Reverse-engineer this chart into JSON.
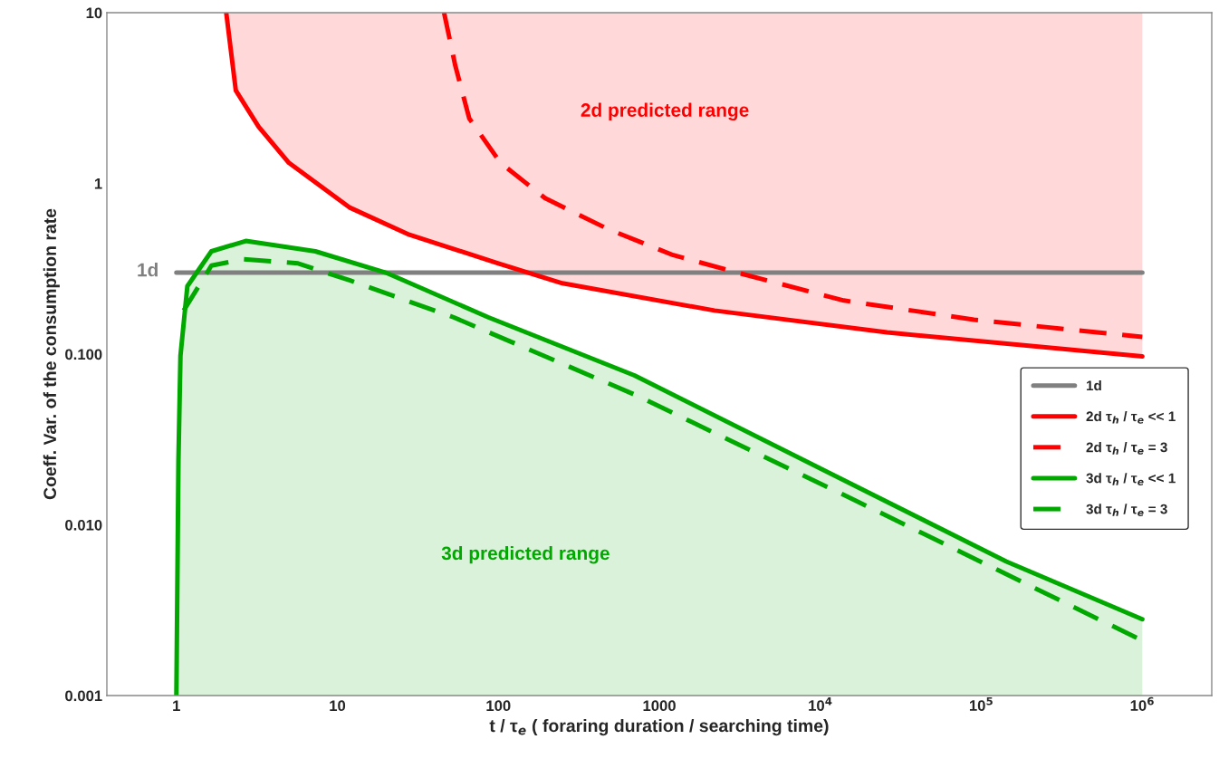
{
  "chart_data": {
    "type": "line",
    "xlabel": "t / τ$_{e}$ ( foraring duration / searching time)",
    "ylabel": "Coeff. Var. of the consumption rate",
    "log": "xy",
    "grid": false,
    "legend": "right",
    "xlim": [
      0.37,
      2700000
    ],
    "ylim": [
      0.001,
      10
    ],
    "xticks": [
      1,
      10,
      100,
      1000,
      {
        "value": 10000,
        "label": "10$^{4}$"
      },
      {
        "value": 100000,
        "label": "10$^{5}$"
      },
      {
        "value": 1000000,
        "label": "10$^{6}$"
      }
    ],
    "yticks": [
      0.001,
      {
        "value": 0.01,
        "label": "0.010"
      },
      {
        "value": 0.1,
        "label": "0.100"
      },
      1,
      10
    ],
    "annotations": [
      "1d",
      "2d predicted range",
      "3d predicted range"
    ],
    "series": [
      {
        "name": "1d",
        "color": "#808080",
        "line_style": "solid",
        "x": [
          1,
          1000000
        ],
        "values": [
          0.3,
          0.3
        ]
      },
      {
        "name": "2d τ$_{h}$ / τ$_{e}$ << 1",
        "color": "#ff0000",
        "line_style": "solid",
        "x": [
          2.04,
          2.34,
          3.24,
          5,
          12,
          28,
          100,
          250,
          2200,
          26000,
          1000000
        ],
        "values": [
          10,
          3.5,
          2.15,
          1.32,
          0.72,
          0.5,
          0.34,
          0.26,
          0.18,
          0.134,
          0.097
        ],
        "lower": [
          10,
          3.5,
          2.15,
          1.32,
          0.72,
          0.5,
          0.34,
          0.26,
          0.18,
          0.134,
          0.097
        ],
        "upper": [
          10,
          10,
          10,
          10,
          10,
          10,
          10,
          10,
          10,
          10,
          10
        ]
      },
      {
        "name": "2d τ$_{h}$ / τ$_{e}$ = 3",
        "color": "#ff0000",
        "line_style": "dashed",
        "x": [
          46,
          54,
          66,
          103,
          195,
          480,
          1220,
          3060,
          14000,
          90000,
          1000000
        ],
        "values": [
          10,
          4.9,
          2.4,
          1.32,
          0.82,
          0.54,
          0.38,
          0.3,
          0.206,
          0.159,
          0.126
        ]
      },
      {
        "name": "3d τ$_{h}$ / τ$_{e}$ << 1",
        "color": "#00a800",
        "line_style": "solid",
        "x": [
          1,
          1.03,
          1.06,
          1.17,
          1.65,
          2.7,
          7.3,
          20,
          87,
          700,
          10000,
          143000,
          1000000
        ],
        "values": [
          0.001,
          0.024,
          0.098,
          0.25,
          0.4,
          0.46,
          0.4,
          0.3,
          0.164,
          0.075,
          0.0214,
          0.0061,
          0.0028
        ],
        "lower": [
          0.001,
          0.001,
          0.001,
          0.001,
          0.001,
          0.001,
          0.001,
          0.001,
          0.001,
          0.001,
          0.001,
          0.001,
          0.001
        ],
        "upper": [
          0.001,
          0.024,
          0.098,
          0.25,
          0.4,
          0.46,
          0.4,
          0.3,
          0.164,
          0.075,
          0.0214,
          0.0061,
          0.0028
        ]
      },
      {
        "name": "3d τ$_{h}$ / τ$_{e}$ = 3",
        "color": "#00a800",
        "line_style": "dashed",
        "x": [
          1.11,
          1.65,
          2.6,
          5.7,
          12,
          53,
          700,
          17000,
          1000000
        ],
        "values": [
          0.18,
          0.33,
          0.36,
          0.34,
          0.27,
          0.164,
          0.058,
          0.0137,
          0.0021
        ]
      }
    ]
  }
}
